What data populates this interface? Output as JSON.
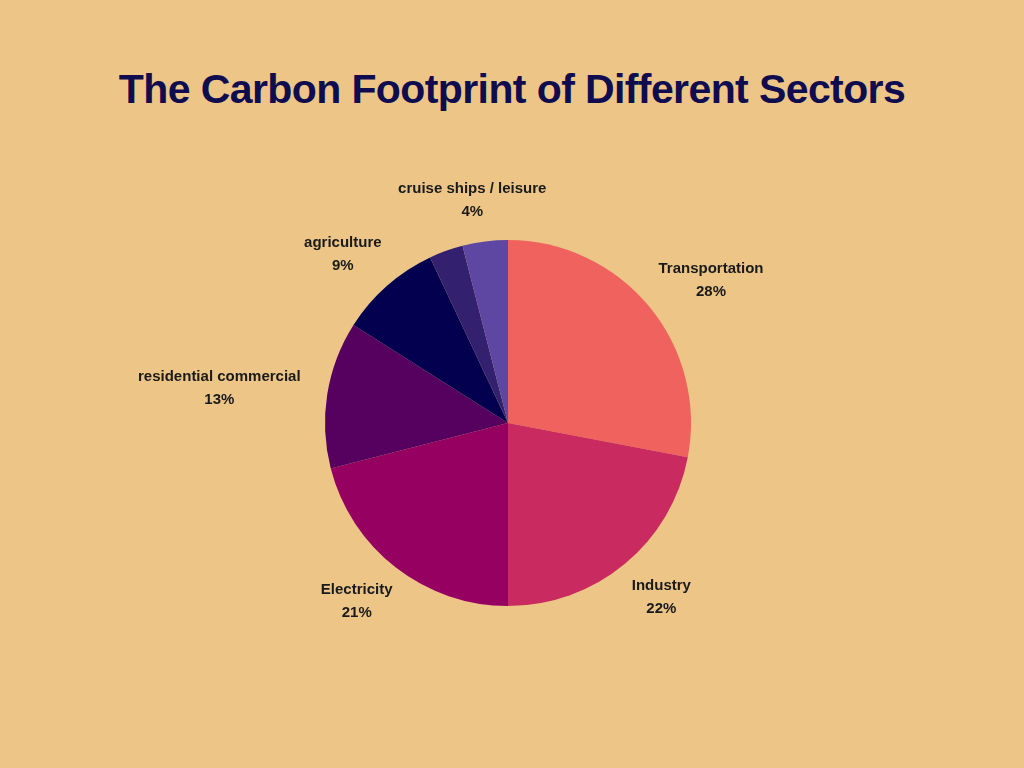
{
  "chart_data": {
    "type": "pie",
    "title": "The Carbon Footprint of Different Sectors",
    "categories": [
      "Transportation",
      "Industry",
      "Electricity",
      "residential commercial",
      "agriculture",
      null,
      "cruise ships / leisure"
    ],
    "values": [
      28,
      22,
      21,
      13,
      9,
      3,
      4
    ],
    "value_labels": [
      "28%",
      "22%",
      "21%",
      "13%",
      "9%",
      null,
      "4%"
    ],
    "colors": [
      "#f0625d",
      "#c92b60",
      "#960060",
      "#560060",
      "#03004f",
      "#33206e",
      "#5d47a3"
    ],
    "data_labels": true
  }
}
